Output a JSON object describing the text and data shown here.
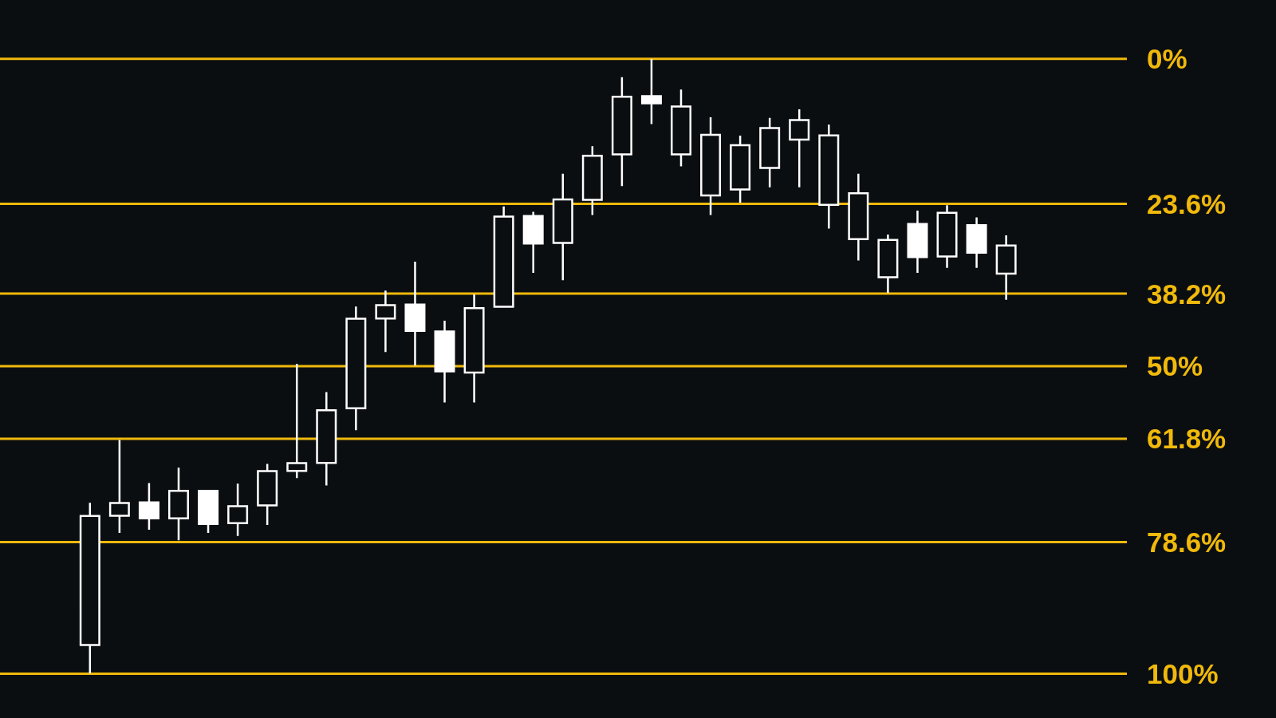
{
  "chart_data": {
    "type": "candlestick",
    "color": "#ffffff",
    "grid": "y",
    "categories": [
      null,
      null,
      null,
      null,
      null,
      null,
      null,
      null,
      null,
      null,
      null,
      null,
      null,
      null,
      null,
      null,
      null,
      null,
      null,
      null,
      null,
      null,
      null,
      null,
      null,
      null,
      null,
      null,
      null,
      null,
      null,
      null
    ],
    "ylim": [
      100,
      0
    ],
    "yticks": [
      {
        "value": 0,
        "label": "0%"
      },
      {
        "value": 23.6,
        "label": "23.6%"
      },
      {
        "value": 38.2,
        "label": "38.2%"
      },
      {
        "value": 50,
        "label": "50%"
      },
      {
        "value": 61.8,
        "label": "61.8%"
      },
      {
        "value": 78.6,
        "label": "78.6%"
      },
      {
        "value": 100,
        "label": "100%"
      }
    ],
    "ohlc": [
      [
        95.5,
        100,
        72.2,
        74.2
      ],
      [
        74.5,
        77.1,
        62.0,
        72.1
      ],
      [
        72.0,
        76.6,
        69.0,
        74.9
      ],
      [
        74.9,
        78.3,
        66.5,
        70.1
      ],
      [
        70.1,
        77.1,
        70.1,
        75.8
      ],
      [
        75.7,
        77.6,
        69.1,
        72.6
      ],
      [
        72.8,
        75.8,
        65.9,
        66.9
      ],
      [
        67.2,
        68.2,
        49.6,
        65.6
      ],
      [
        65.9,
        69.4,
        54.2,
        57.0
      ],
      [
        57.0,
        60.4,
        40.3,
        42.1
      ],
      [
        42.4,
        47.7,
        37.7,
        39.9
      ],
      [
        39.8,
        49.9,
        33.0,
        44.4
      ],
      [
        44.2,
        55.9,
        42.6,
        51.0
      ],
      [
        51.2,
        55.9,
        38.3,
        40.4
      ],
      [
        40.5,
        40.5,
        24.0,
        25.5
      ],
      [
        25.4,
        34.8,
        24.9,
        30.2
      ],
      [
        30.1,
        36.0,
        18.7,
        22.7
      ],
      [
        23.1,
        25.4,
        14.2,
        15.6
      ],
      [
        15.7,
        20.7,
        3.0,
        6.0
      ],
      [
        5.9,
        10.6,
        0,
        7.4
      ],
      [
        15.7,
        17.5,
        5.0,
        7.6
      ],
      [
        22.4,
        25.4,
        9.5,
        12.2
      ],
      [
        21.4,
        23.4,
        12.5,
        13.9
      ],
      [
        17.9,
        20.9,
        9.6,
        11.1
      ],
      [
        13.3,
        20.9,
        8.2,
        9.8
      ],
      [
        23.9,
        27.6,
        10.7,
        12.3
      ],
      [
        29.5,
        32.8,
        18.7,
        21.7
      ],
      [
        35.7,
        38.1,
        28.6,
        29.3
      ],
      [
        26.7,
        34.8,
        24.7,
        32.4
      ],
      [
        32.3,
        34.0,
        23.8,
        24.9
      ],
      [
        26.9,
        34.0,
        25.8,
        31.7
      ],
      [
        35.1,
        39.2,
        28.7,
        30.2
      ]
    ]
  }
}
